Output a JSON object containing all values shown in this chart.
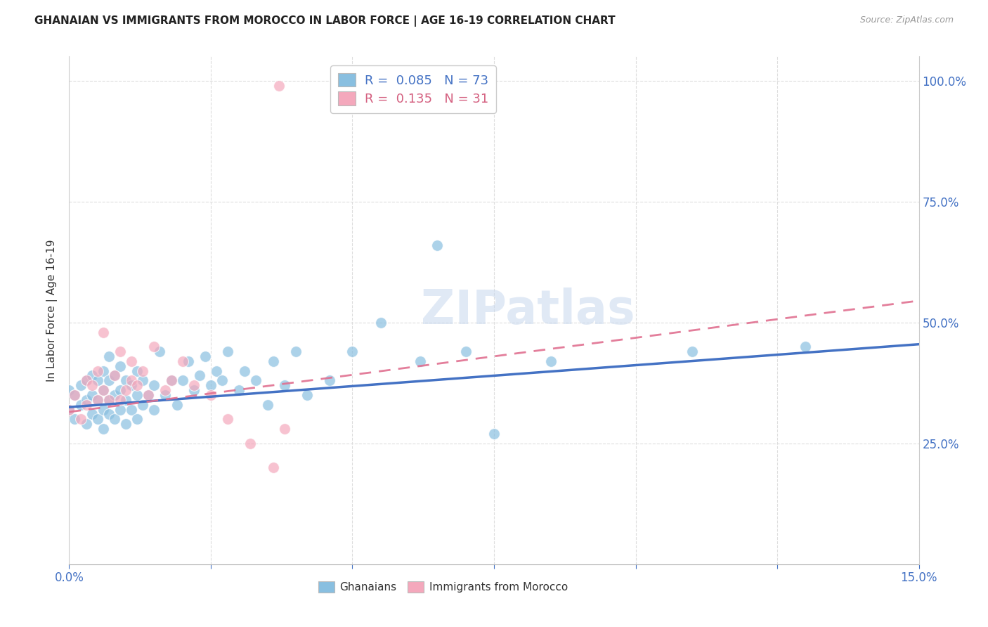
{
  "title": "GHANAIAN VS IMMIGRANTS FROM MOROCCO IN LABOR FORCE | AGE 16-19 CORRELATION CHART",
  "source": "Source: ZipAtlas.com",
  "ylabel": "In Labor Force | Age 16-19",
  "xlim": [
    0.0,
    0.15
  ],
  "ylim": [
    0.0,
    1.05
  ],
  "xtick_vals": [
    0.0,
    0.025,
    0.05,
    0.075,
    0.1,
    0.125,
    0.15
  ],
  "xtick_labels": [
    "0.0%",
    "",
    "",
    "",
    "",
    "",
    "15.0%"
  ],
  "ytick_vals": [
    0.25,
    0.5,
    0.75,
    1.0
  ],
  "ytick_labels": [
    "25.0%",
    "50.0%",
    "75.0%",
    "100.0%"
  ],
  "background_color": "#ffffff",
  "grid_color": "#dddddd",
  "series1_color": "#89bfe0",
  "series2_color": "#f4a8bc",
  "trendline1_color": "#4472c4",
  "trendline2_color": "#e07090",
  "R1": 0.085,
  "N1": 73,
  "R2": 0.135,
  "N2": 31,
  "trend1_x": [
    0.0,
    0.15
  ],
  "trend1_y": [
    0.325,
    0.455
  ],
  "trend2_x": [
    0.0,
    0.15
  ],
  "trend2_y": [
    0.315,
    0.545
  ],
  "ghanaian_x": [
    0.0,
    0.0,
    0.001,
    0.001,
    0.002,
    0.002,
    0.003,
    0.003,
    0.003,
    0.004,
    0.004,
    0.004,
    0.005,
    0.005,
    0.005,
    0.006,
    0.006,
    0.006,
    0.006,
    0.007,
    0.007,
    0.007,
    0.007,
    0.008,
    0.008,
    0.008,
    0.009,
    0.009,
    0.009,
    0.01,
    0.01,
    0.01,
    0.011,
    0.011,
    0.012,
    0.012,
    0.012,
    0.013,
    0.013,
    0.014,
    0.015,
    0.015,
    0.016,
    0.017,
    0.018,
    0.019,
    0.02,
    0.021,
    0.022,
    0.023,
    0.024,
    0.025,
    0.026,
    0.027,
    0.028,
    0.03,
    0.031,
    0.033,
    0.035,
    0.036,
    0.038,
    0.04,
    0.042,
    0.046,
    0.05,
    0.055,
    0.062,
    0.065,
    0.07,
    0.075,
    0.085,
    0.11,
    0.13
  ],
  "ghanaian_y": [
    0.32,
    0.36,
    0.3,
    0.35,
    0.33,
    0.37,
    0.29,
    0.34,
    0.38,
    0.31,
    0.35,
    0.39,
    0.3,
    0.34,
    0.38,
    0.28,
    0.32,
    0.36,
    0.4,
    0.31,
    0.34,
    0.38,
    0.43,
    0.3,
    0.35,
    0.39,
    0.32,
    0.36,
    0.41,
    0.29,
    0.34,
    0.38,
    0.32,
    0.37,
    0.3,
    0.35,
    0.4,
    0.33,
    0.38,
    0.35,
    0.32,
    0.37,
    0.44,
    0.35,
    0.38,
    0.33,
    0.38,
    0.42,
    0.36,
    0.39,
    0.43,
    0.37,
    0.4,
    0.38,
    0.44,
    0.36,
    0.4,
    0.38,
    0.33,
    0.42,
    0.37,
    0.44,
    0.35,
    0.38,
    0.44,
    0.5,
    0.42,
    0.66,
    0.44,
    0.27,
    0.42,
    0.44,
    0.45
  ],
  "morocco_x": [
    0.0,
    0.001,
    0.002,
    0.003,
    0.003,
    0.004,
    0.005,
    0.005,
    0.006,
    0.006,
    0.007,
    0.008,
    0.009,
    0.009,
    0.01,
    0.011,
    0.011,
    0.012,
    0.013,
    0.014,
    0.015,
    0.017,
    0.018,
    0.02,
    0.022,
    0.025,
    0.028,
    0.032,
    0.036,
    0.038,
    0.037
  ],
  "morocco_y": [
    0.32,
    0.35,
    0.3,
    0.38,
    0.33,
    0.37,
    0.34,
    0.4,
    0.48,
    0.36,
    0.34,
    0.39,
    0.34,
    0.44,
    0.36,
    0.38,
    0.42,
    0.37,
    0.4,
    0.35,
    0.45,
    0.36,
    0.38,
    0.42,
    0.37,
    0.35,
    0.3,
    0.25,
    0.2,
    0.28,
    0.99
  ]
}
